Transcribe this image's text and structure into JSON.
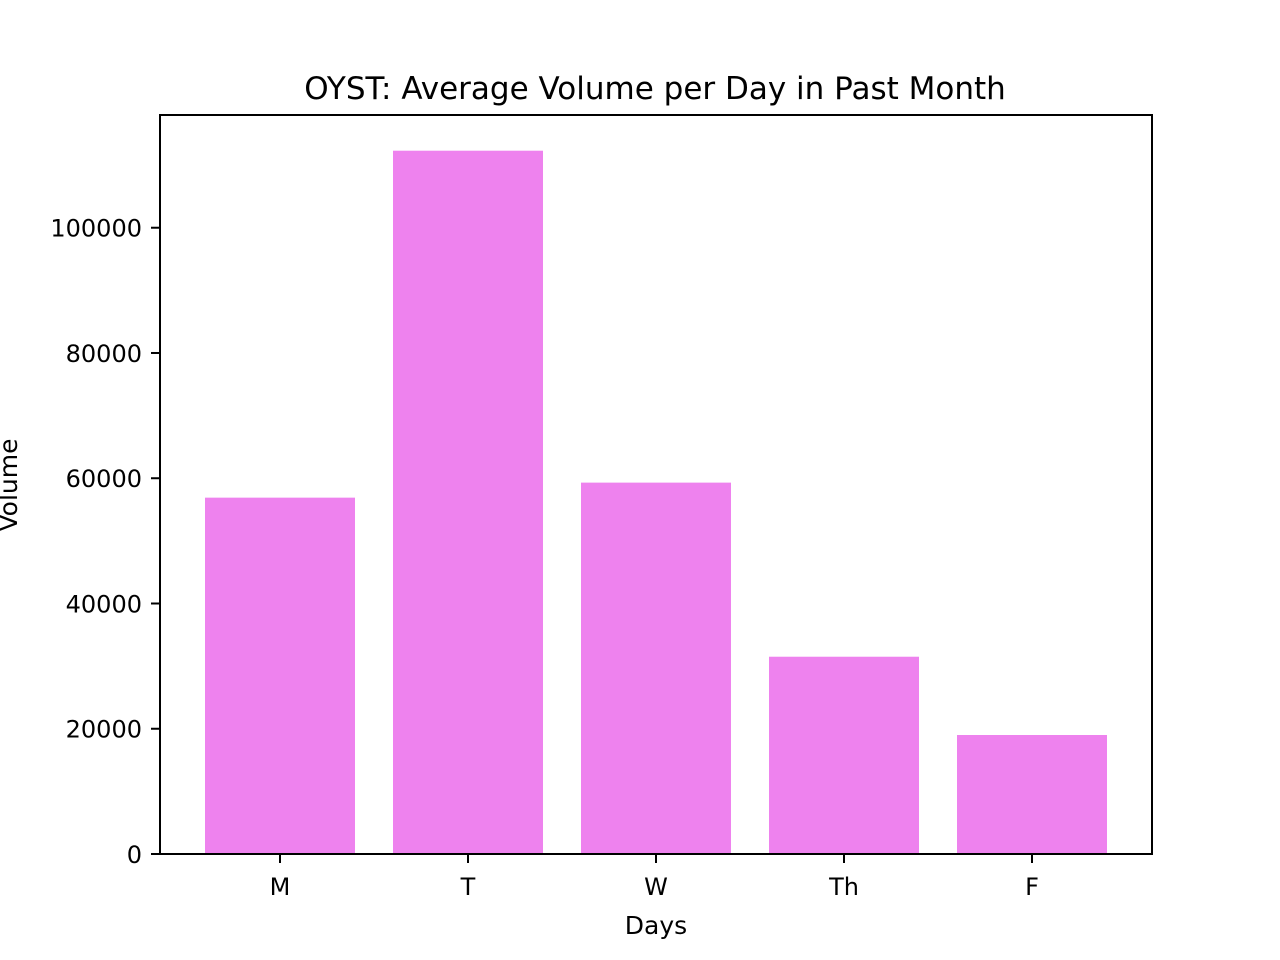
{
  "chart_data": {
    "type": "bar",
    "title": "OYST: Average Volume per Day in Past Month",
    "xlabel": "Days",
    "ylabel": "Volume",
    "categories": [
      "M",
      "T",
      "W",
      "Th",
      "F"
    ],
    "values": [
      56900,
      112300,
      59300,
      31500,
      19000
    ],
    "ylim": [
      0,
      118000
    ],
    "yticks": [
      0,
      20000,
      40000,
      60000,
      80000,
      100000
    ],
    "ytick_labels": [
      "0",
      "20000",
      "40000",
      "60000",
      "80000",
      "100000"
    ],
    "bar_color": "#ee82ee",
    "grid": false,
    "legend": "none"
  }
}
